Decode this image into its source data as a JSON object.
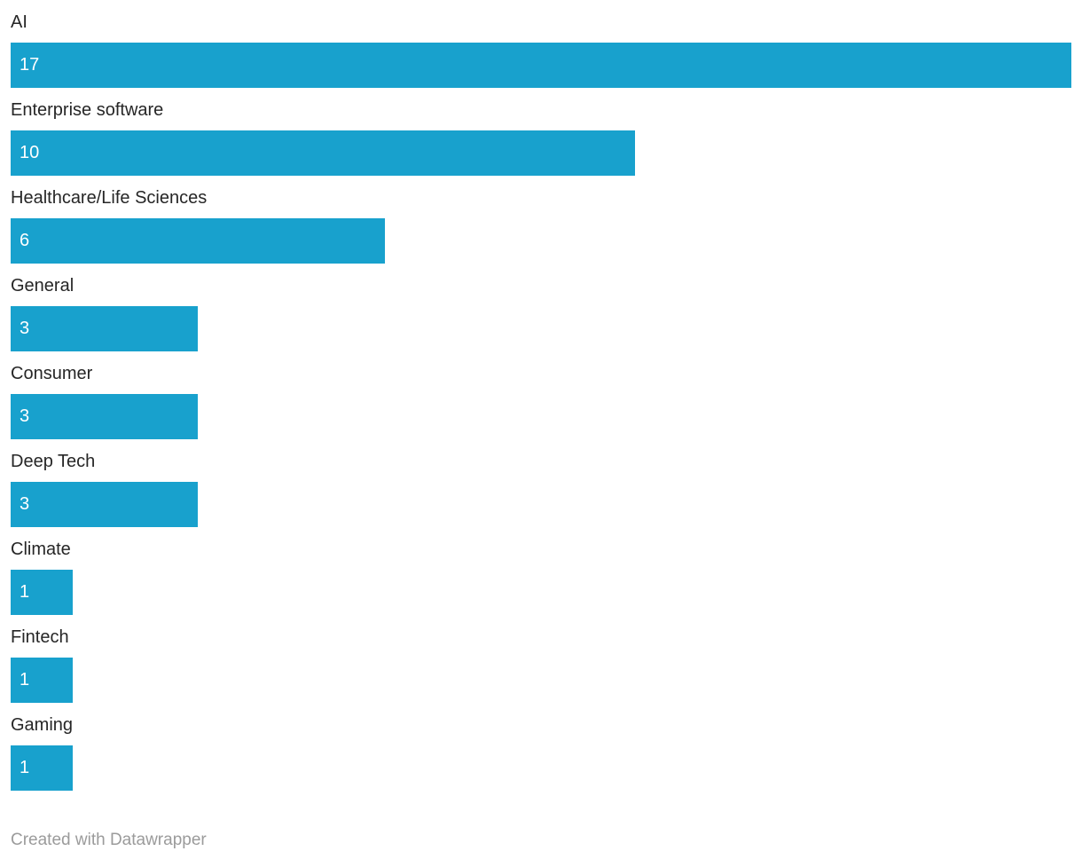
{
  "chart_data": {
    "type": "bar",
    "orientation": "horizontal",
    "title": "",
    "xlabel": "",
    "ylabel": "",
    "categories": [
      "AI",
      "Enterprise software",
      "Healthcare/Life Sciences",
      "General",
      "Consumer",
      "Deep Tech",
      "Climate",
      "Fintech",
      "Gaming"
    ],
    "values": [
      17,
      10,
      6,
      3,
      3,
      3,
      1,
      1,
      1
    ],
    "value_labels": [
      "17",
      "10",
      "6",
      "3",
      "3",
      "3",
      "1",
      "1",
      "1"
    ],
    "xlim": [
      0,
      17
    ],
    "grid": false,
    "legend": false,
    "value_label_position": "inside-start",
    "category_label_position": "above-bar",
    "bar_color": "#18a1cd",
    "value_label_color": "#ffffff",
    "category_label_color": "#262626"
  },
  "footer": {
    "credit": "Created with Datawrapper",
    "credit_color": "#9b9b9b"
  }
}
